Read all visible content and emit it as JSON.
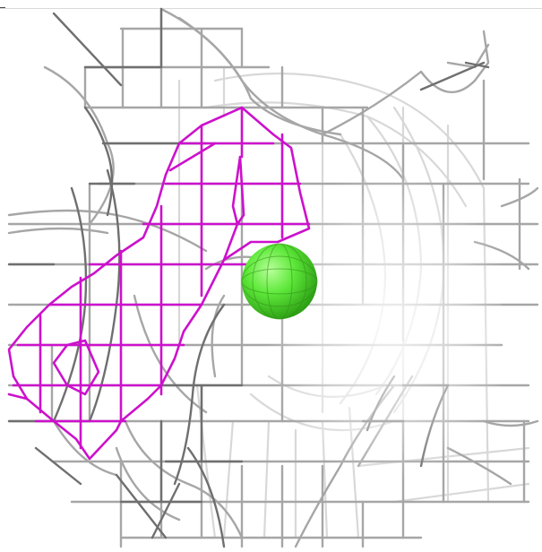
{
  "scene": {
    "background_color": "#ffffff",
    "mesh_colors": {
      "grey_dark": "#6e6e6e",
      "grey_mid": "#9a9a9a",
      "grey_light": "#d6d6d6",
      "magenta": "#cc11cc",
      "atom_green": "#44dd22"
    },
    "objects": [
      {
        "name": "electron-density-mesh-grey",
        "kind": "wireframe"
      },
      {
        "name": "electron-density-mesh-magenta",
        "kind": "wireframe"
      },
      {
        "name": "atom-sphere-green",
        "kind": "sphere"
      }
    ]
  }
}
